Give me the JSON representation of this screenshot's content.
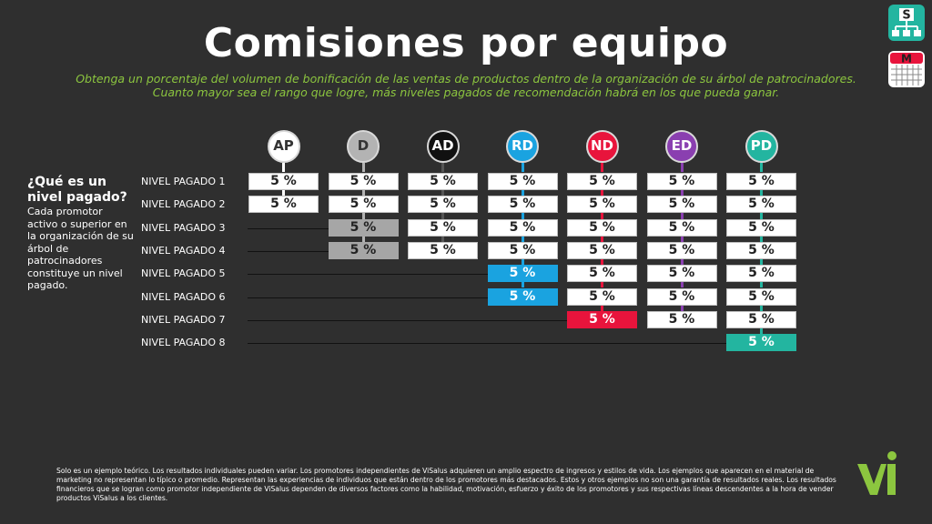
{
  "header": {
    "title": "Comisiones por equipo",
    "subtitle_line1": "Obtenga un porcentaje del volumen de bonificación de las ventas de productos dentro de la organización de su árbol de patrocinadores.",
    "subtitle_line2": "Cuanto mayor sea el rango que logre, más niveles pagados de recomendación habrá en los que pueda ganar."
  },
  "sidebar": {
    "question": "¿Qué es un nivel pagado?",
    "answer": "Cada promotor activo o superior en la organización de su árbol de patrocinadores constituye un nivel pagado."
  },
  "levels": [
    "NIVEL PAGADO 1",
    "NIVEL PAGADO 2",
    "NIVEL PAGADO 3",
    "NIVEL PAGADO 4",
    "NIVEL PAGADO 5",
    "NIVEL PAGADO 6",
    "NIVEL PAGADO 7",
    "NIVEL PAGADO 8"
  ],
  "ranks": [
    {
      "code": "AP",
      "circle_bg": "#ffffff",
      "text_color": "#333333",
      "levels": 2,
      "highlight_levels": [],
      "highlight_color": "#ffffff"
    },
    {
      "code": "D",
      "circle_bg": "#b3b3b3",
      "text_color": "#333333",
      "levels": 4,
      "highlight_levels": [
        3,
        4
      ],
      "highlight_color": "#a6a6a6"
    },
    {
      "code": "AD",
      "circle_bg": "#111111",
      "text_color": "#ffffff",
      "levels": 4,
      "highlight_levels": [],
      "highlight_color": "#ffffff"
    },
    {
      "code": "RD",
      "circle_bg": "#1aa3e0",
      "text_color": "#ffffff",
      "levels": 6,
      "highlight_levels": [
        5,
        6
      ],
      "highlight_color": "#1aa3e0"
    },
    {
      "code": "ND",
      "circle_bg": "#e8143c",
      "text_color": "#ffffff",
      "levels": 7,
      "highlight_levels": [
        7
      ],
      "highlight_color": "#e8143c"
    },
    {
      "code": "ED",
      "circle_bg": "#8a3fb0",
      "text_color": "#ffffff",
      "levels": 7,
      "highlight_levels": [],
      "highlight_color": "#ffffff"
    },
    {
      "code": "PD",
      "circle_bg": "#23b5a0",
      "text_color": "#ffffff",
      "levels": 8,
      "highlight_levels": [
        8
      ],
      "highlight_color": "#23b5a0"
    }
  ],
  "cell_value": "5 %",
  "disclaimer": "Solo es un ejemplo teórico. Los resultados individuales pueden variar.  Los promotores independientes de ViSalus adquieren un amplio espectro de ingresos y estilos de vida. Los ejemplos que aparecen en el material de marketing no representan lo típico o promedio. Representan las experiencias de individuos que están dentro de los promotores más destacados.  Estos y otros ejemplos no son una garantía de resultados reales. Los resultados financieros que se logran como promotor independiente de ViSalus dependen de diversos factores como la habilidad, motivación, esfuerzo y éxito de los promotores y sus respectivas líneas descendentes a la hora de vender productos ViSalus a los clientes.",
  "icons": {
    "top": {
      "name": "sponsor-tree-icon",
      "letter": "S",
      "color": "#23b5a0"
    },
    "bottom": {
      "name": "calendar-icon",
      "letter": "M",
      "color": "#e8143c"
    }
  },
  "logo": {
    "text": "Vi",
    "color": "#8cc63f"
  }
}
